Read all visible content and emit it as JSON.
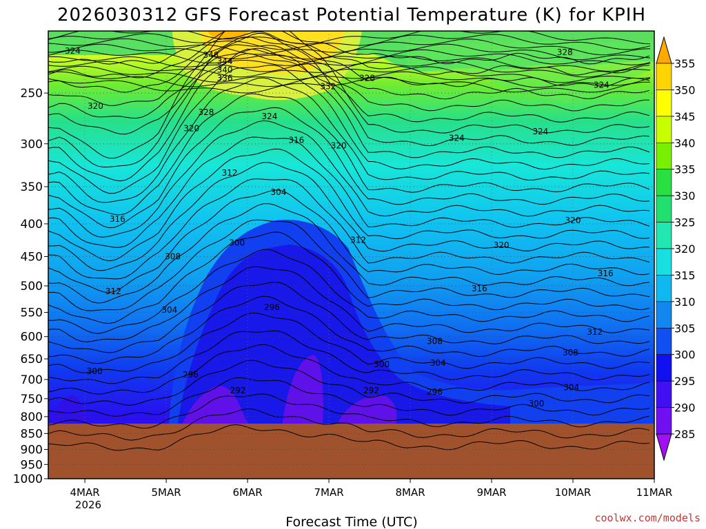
{
  "chart_data": {
    "type": "heatmap",
    "title": "2026030312 GFS Forecast Potential Temperature (K) for KPIH",
    "xlabel": "Forecast Time (UTC)",
    "ylabel": "",
    "x_ticks": [
      "4MAR",
      "5MAR",
      "6MAR",
      "7MAR",
      "8MAR",
      "9MAR",
      "10MAR",
      "11MAR"
    ],
    "x_year_label": "2026",
    "y_ticks": [
      250,
      300,
      350,
      400,
      450,
      500,
      550,
      600,
      650,
      700,
      750,
      800,
      850,
      900,
      950,
      1000
    ],
    "y_scale": "log",
    "y_range": [
      1000,
      200
    ],
    "x_range_days": [
      3.55,
      11.0
    ],
    "surface_pressure_hPa": 862,
    "grid": "dotted",
    "colorbar": {
      "ticks": [
        355,
        350,
        345,
        340,
        335,
        330,
        325,
        320,
        315,
        310,
        305,
        300,
        295,
        290,
        285
      ],
      "colors": [
        "#ffa800",
        "#ffd400",
        "#ffff00",
        "#c8ff00",
        "#78f000",
        "#28e040",
        "#20e070",
        "#20e8b0",
        "#18e0e0",
        "#10b8f0",
        "#1088f0",
        "#1050f0",
        "#1010f0",
        "#4010f0",
        "#7010f0",
        "#a010f0"
      ],
      "extends": "both"
    },
    "contour_labels": [
      {
        "value": "324",
        "x": 3.85,
        "p": 215
      },
      {
        "value": "348",
        "x": 5.55,
        "p": 218
      },
      {
        "value": "344",
        "x": 5.72,
        "p": 223
      },
      {
        "value": "340",
        "x": 5.72,
        "p": 230
      },
      {
        "value": "336",
        "x": 5.72,
        "p": 237
      },
      {
        "value": "332",
        "x": 6.99,
        "p": 244
      },
      {
        "value": "328",
        "x": 7.47,
        "p": 237
      },
      {
        "value": "328",
        "x": 5.49,
        "p": 268
      },
      {
        "value": "320",
        "x": 4.13,
        "p": 262
      },
      {
        "value": "320",
        "x": 5.31,
        "p": 284
      },
      {
        "value": "324",
        "x": 6.27,
        "p": 272
      },
      {
        "value": "316",
        "x": 6.6,
        "p": 296
      },
      {
        "value": "320",
        "x": 7.12,
        "p": 302
      },
      {
        "value": "324",
        "x": 8.57,
        "p": 294
      },
      {
        "value": "324",
        "x": 9.6,
        "p": 287
      },
      {
        "value": "328",
        "x": 9.9,
        "p": 216
      },
      {
        "value": "324",
        "x": 10.35,
        "p": 243
      },
      {
        "value": "312",
        "x": 5.78,
        "p": 333
      },
      {
        "value": "304",
        "x": 6.38,
        "p": 357
      },
      {
        "value": "316",
        "x": 4.4,
        "p": 393
      },
      {
        "value": "320",
        "x": 10.0,
        "p": 395
      },
      {
        "value": "312",
        "x": 7.36,
        "p": 424
      },
      {
        "value": "320",
        "x": 9.12,
        "p": 432
      },
      {
        "value": "300",
        "x": 5.87,
        "p": 428
      },
      {
        "value": "308",
        "x": 5.08,
        "p": 450
      },
      {
        "value": "316",
        "x": 10.4,
        "p": 478
      },
      {
        "value": "312",
        "x": 4.35,
        "p": 510
      },
      {
        "value": "316",
        "x": 8.85,
        "p": 505
      },
      {
        "value": "304",
        "x": 5.04,
        "p": 545
      },
      {
        "value": "296",
        "x": 6.3,
        "p": 540
      },
      {
        "value": "312",
        "x": 10.27,
        "p": 590
      },
      {
        "value": "308",
        "x": 8.3,
        "p": 610
      },
      {
        "value": "308",
        "x": 9.97,
        "p": 636
      },
      {
        "value": "304",
        "x": 8.34,
        "p": 660
      },
      {
        "value": "300",
        "x": 7.65,
        "p": 663
      },
      {
        "value": "300",
        "x": 4.12,
        "p": 680
      },
      {
        "value": "296",
        "x": 5.3,
        "p": 688
      },
      {
        "value": "296",
        "x": 8.3,
        "p": 732
      },
      {
        "value": "292",
        "x": 5.88,
        "p": 728
      },
      {
        "value": "292",
        "x": 7.52,
        "p": 728
      },
      {
        "value": "304",
        "x": 9.98,
        "p": 720
      },
      {
        "value": "300",
        "x": 9.55,
        "p": 763
      }
    ]
  },
  "credit": "coolwx.com/models"
}
